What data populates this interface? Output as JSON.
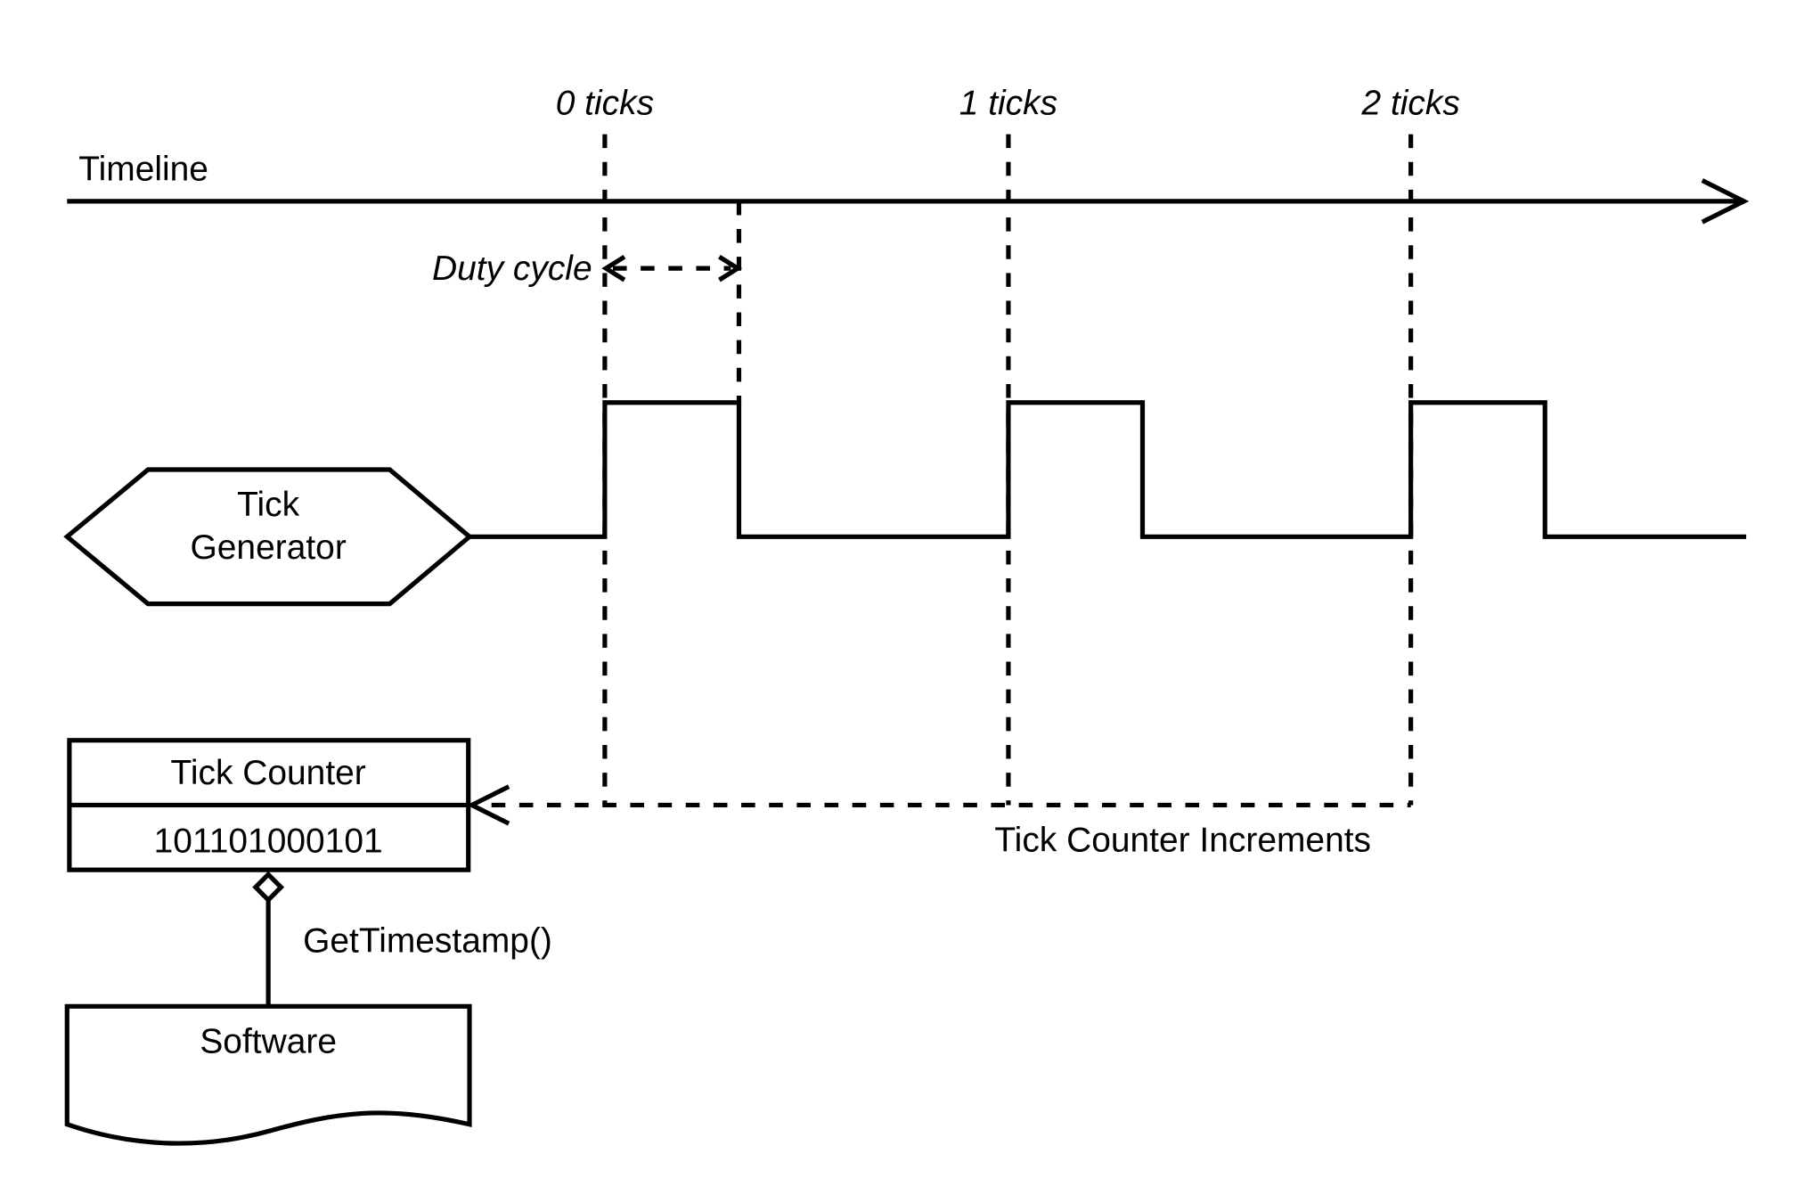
{
  "timeline": {
    "label": "Timeline"
  },
  "ticks": [
    "0 ticks",
    "1 ticks",
    "2 ticks"
  ],
  "duty_cycle": {
    "label": "Duty cycle"
  },
  "tick_generator": {
    "line1": "Tick",
    "line2": "Generator"
  },
  "tick_counter": {
    "title": "Tick Counter",
    "value": "101101000101"
  },
  "increments": {
    "label": "Tick Counter Increments"
  },
  "get_timestamp": {
    "label": "GetTimestamp()"
  },
  "software": {
    "label": "Software"
  },
  "colors": {
    "stroke": "#000000",
    "background": "#ffffff"
  }
}
